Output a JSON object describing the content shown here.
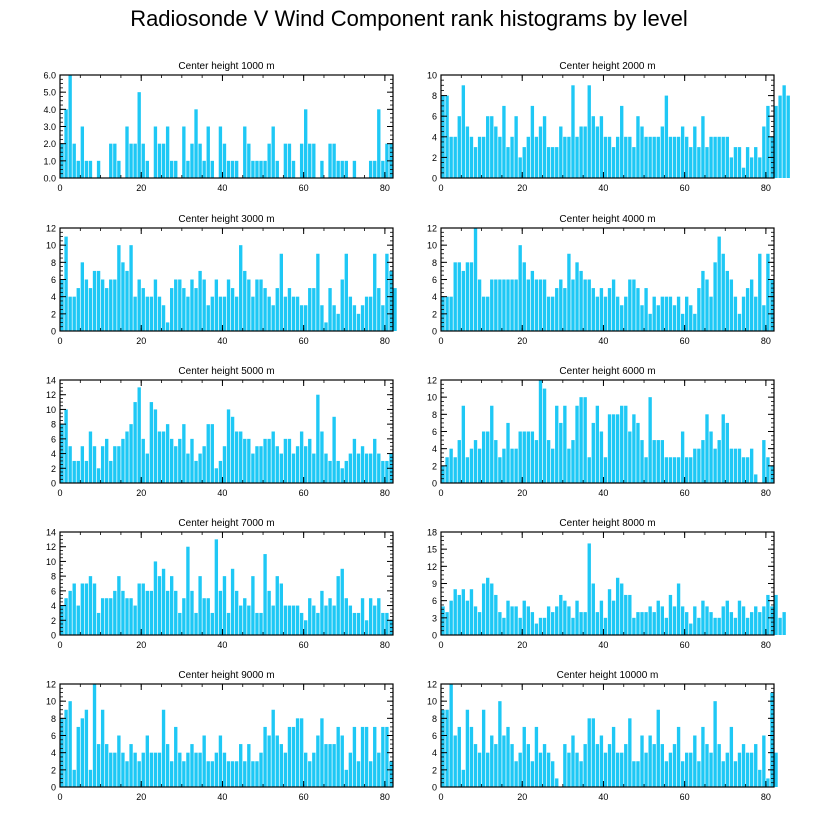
{
  "title": "Radiosonde V Wind Component rank histograms by level",
  "bar_color": "#1ec8f5",
  "chart_data": [
    {
      "type": "bar",
      "title": "Center height 1000 m",
      "xlim": [
        0,
        82
      ],
      "ylim": [
        0,
        6
      ],
      "yticks": [
        0,
        1,
        2,
        3,
        4,
        5,
        6
      ],
      "ytick_labels": [
        "0.0",
        "1.0",
        "2.0",
        "3.0",
        "4.0",
        "5.0",
        "6.0"
      ],
      "xticks": [
        0,
        20,
        40,
        60,
        80
      ],
      "xtick_labels": [
        "0",
        "20",
        "40",
        "60",
        "80"
      ],
      "values": [
        2,
        4,
        6,
        2,
        1,
        3,
        1,
        1,
        0,
        1,
        0,
        0,
        2,
        2,
        1,
        0,
        3,
        2,
        2,
        5,
        2,
        1,
        0,
        3,
        2,
        2,
        3,
        1,
        1,
        0,
        3,
        1,
        2,
        4,
        2,
        1,
        3,
        1,
        0,
        3,
        2,
        1,
        1,
        1,
        0,
        3,
        2,
        1,
        1,
        1,
        1,
        2,
        3,
        1,
        0,
        2,
        2,
        1,
        0,
        2,
        4,
        2,
        2,
        0,
        1,
        0,
        2,
        2,
        1,
        1,
        1,
        0,
        1,
        0,
        0,
        0,
        1,
        1,
        4,
        1,
        2,
        2
      ]
    },
    {
      "type": "bar",
      "title": "Center height 2000 m",
      "xlim": [
        0,
        82
      ],
      "ylim": [
        0,
        10
      ],
      "yticks": [
        0,
        2,
        4,
        6,
        8,
        10
      ],
      "ytick_labels": [
        "0",
        "2",
        "4",
        "6",
        "8",
        "10"
      ],
      "xticks": [
        0,
        20,
        40,
        60,
        80
      ],
      "xtick_labels": [
        "0",
        "20",
        "40",
        "60",
        "80"
      ],
      "values": [
        8,
        8,
        4,
        4,
        6,
        9,
        5,
        4,
        3,
        4,
        4,
        6,
        6,
        5,
        4,
        7,
        3,
        4,
        6,
        2,
        3,
        4,
        7,
        4,
        5,
        6,
        3,
        3,
        3,
        5,
        4,
        4,
        9,
        4,
        5,
        5,
        9,
        6,
        5,
        6,
        4,
        4,
        3,
        4,
        7,
        4,
        4,
        3,
        6,
        5,
        4,
        4,
        4,
        4,
        5,
        8,
        4,
        4,
        4,
        5,
        4,
        3,
        5,
        3,
        6,
        3,
        4,
        4,
        4,
        4,
        4,
        2,
        3,
        3,
        1,
        3,
        2,
        3,
        2,
        5,
        7,
        4,
        7,
        8,
        9,
        8
      ]
    },
    {
      "type": "bar",
      "title": "Center height 3000 m",
      "xlim": [
        0,
        82
      ],
      "ylim": [
        0,
        12
      ],
      "yticks": [
        0,
        2,
        4,
        6,
        8,
        10,
        12
      ],
      "ytick_labels": [
        "0",
        "2",
        "4",
        "6",
        "8",
        "10",
        "12"
      ],
      "xticks": [
        0,
        20,
        40,
        60,
        80
      ],
      "xtick_labels": [
        "0",
        "20",
        "40",
        "60",
        "80"
      ],
      "values": [
        6,
        11,
        4,
        4,
        5,
        8,
        6,
        5,
        7,
        7,
        6,
        5,
        6,
        6,
        10,
        8,
        7,
        10,
        4,
        6,
        5,
        4,
        4,
        6,
        4,
        3,
        1,
        5,
        6,
        6,
        5,
        4,
        6,
        5,
        7,
        6,
        3,
        4,
        6,
        4,
        4,
        6,
        5,
        4,
        10,
        7,
        6,
        4,
        6,
        6,
        5,
        4,
        3,
        5,
        9,
        4,
        5,
        4,
        4,
        3,
        3,
        5,
        5,
        9,
        3,
        1,
        5,
        3,
        2,
        6,
        9,
        4,
        3,
        2,
        3,
        4,
        4,
        9,
        5,
        3,
        9,
        7,
        5
      ]
    },
    {
      "type": "bar",
      "title": "Center height 4000 m",
      "xlim": [
        0,
        82
      ],
      "ylim": [
        0,
        12
      ],
      "yticks": [
        0,
        2,
        4,
        6,
        8,
        10,
        12
      ],
      "ytick_labels": [
        "0",
        "2",
        "4",
        "6",
        "8",
        "10",
        "12"
      ],
      "xticks": [
        0,
        20,
        40,
        60,
        80
      ],
      "xtick_labels": [
        "0",
        "20",
        "40",
        "60",
        "80"
      ],
      "values": [
        4,
        4,
        4,
        8,
        8,
        7,
        8,
        8,
        12,
        6,
        4,
        4,
        6,
        6,
        6,
        6,
        6,
        6,
        6,
        10,
        8,
        6,
        7,
        6,
        6,
        6,
        4,
        4,
        5,
        6,
        5,
        9,
        6,
        8,
        7,
        6,
        6,
        5,
        4,
        5,
        4,
        5,
        6,
        4,
        3,
        4,
        6,
        6,
        5,
        3,
        5,
        2,
        4,
        3,
        4,
        4,
        4,
        3,
        4,
        2,
        4,
        3,
        2,
        5,
        7,
        6,
        4,
        8,
        11,
        9,
        7,
        6,
        4,
        2,
        4,
        5,
        6,
        4,
        9,
        3,
        9,
        6
      ]
    },
    {
      "type": "bar",
      "title": "Center height 5000 m",
      "xlim": [
        0,
        82
      ],
      "ylim": [
        0,
        14
      ],
      "yticks": [
        0,
        2,
        4,
        6,
        8,
        10,
        12,
        14
      ],
      "ytick_labels": [
        "0",
        "2",
        "4",
        "6",
        "8",
        "10",
        "12",
        "14"
      ],
      "xticks": [
        0,
        20,
        40,
        60,
        80
      ],
      "xtick_labels": [
        "0",
        "20",
        "40",
        "60",
        "80"
      ],
      "values": [
        8,
        10,
        5,
        3,
        3,
        5,
        3,
        7,
        5,
        2,
        5,
        6,
        3,
        5,
        5,
        6,
        7,
        8,
        11,
        13,
        6,
        4,
        11,
        10,
        7,
        7,
        8,
        6,
        5,
        6,
        8,
        4,
        6,
        3,
        4,
        5,
        8,
        8,
        2,
        3,
        5,
        10,
        9,
        7,
        7,
        6,
        6,
        4,
        5,
        5,
        6,
        6,
        7,
        5,
        4,
        6,
        6,
        4,
        5,
        7,
        5,
        6,
        4,
        12,
        7,
        4,
        3,
        9,
        3,
        2,
        3,
        4,
        6,
        4,
        5,
        4,
        4,
        6,
        4,
        3,
        3,
        4
      ]
    },
    {
      "type": "bar",
      "title": "Center height 6000 m",
      "xlim": [
        0,
        82
      ],
      "ylim": [
        0,
        12
      ],
      "yticks": [
        0,
        2,
        4,
        6,
        8,
        10,
        12
      ],
      "ytick_labels": [
        "0",
        "2",
        "4",
        "6",
        "8",
        "10",
        "12"
      ],
      "xticks": [
        0,
        20,
        40,
        60,
        80
      ],
      "xtick_labels": [
        "0",
        "20",
        "40",
        "60",
        "80"
      ],
      "values": [
        2,
        3,
        4,
        3,
        5,
        9,
        3,
        4,
        5,
        4,
        6,
        6,
        9,
        5,
        3,
        4,
        7,
        4,
        4,
        6,
        6,
        6,
        6,
        5,
        12,
        11,
        5,
        4,
        9,
        7,
        9,
        4,
        5,
        9,
        10,
        10,
        3,
        7,
        9,
        6,
        3,
        8,
        8,
        8,
        9,
        9,
        6,
        8,
        7,
        5,
        3,
        10,
        5,
        5,
        5,
        3,
        3,
        3,
        3,
        6,
        3,
        3,
        4,
        4,
        5,
        8,
        6,
        4,
        5,
        8,
        7,
        4,
        4,
        4,
        3,
        3,
        4,
        1,
        0,
        5,
        3,
        2
      ]
    },
    {
      "type": "bar",
      "title": "Center height 7000 m",
      "xlim": [
        0,
        82
      ],
      "ylim": [
        0,
        14
      ],
      "yticks": [
        0,
        2,
        4,
        6,
        8,
        10,
        12,
        14
      ],
      "ytick_labels": [
        "0",
        "2",
        "4",
        "6",
        "8",
        "10",
        "12",
        "14"
      ],
      "xticks": [
        0,
        20,
        40,
        60,
        80
      ],
      "xtick_labels": [
        "0",
        "20",
        "40",
        "60",
        "80"
      ],
      "values": [
        4,
        5,
        6,
        7,
        4,
        7,
        7,
        8,
        7,
        3,
        5,
        5,
        5,
        6,
        8,
        6,
        5,
        5,
        4,
        7,
        7,
        6,
        6,
        10,
        8,
        9,
        6,
        8,
        6,
        3,
        5,
        12,
        6,
        3,
        8,
        5,
        5,
        3,
        13,
        6,
        8,
        3,
        9,
        6,
        4,
        5,
        4,
        8,
        3,
        3,
        11,
        6,
        4,
        8,
        7,
        4,
        4,
        4,
        4,
        3,
        2,
        5,
        4,
        3,
        6,
        4,
        5,
        4,
        8,
        9,
        5,
        4,
        3,
        3,
        5,
        2,
        5,
        4,
        5,
        3,
        3,
        2
      ]
    },
    {
      "type": "bar",
      "title": "Center height 8000 m",
      "xlim": [
        0,
        82
      ],
      "ylim": [
        0,
        18
      ],
      "yticks": [
        0,
        3,
        6,
        9,
        12,
        15,
        18
      ],
      "ytick_labels": [
        "0",
        "3",
        "6",
        "9",
        "12",
        "15",
        "18"
      ],
      "xticks": [
        0,
        20,
        40,
        60,
        80
      ],
      "xtick_labels": [
        "0",
        "20",
        "40",
        "60",
        "80"
      ],
      "values": [
        5,
        4,
        6,
        8,
        7,
        8,
        6,
        8,
        5,
        4,
        9,
        10,
        9,
        7,
        4,
        3,
        6,
        5,
        5,
        3,
        6,
        5,
        4,
        2,
        3,
        3,
        5,
        4,
        5,
        7,
        6,
        5,
        3,
        6,
        4,
        4,
        16,
        9,
        4,
        6,
        3,
        8,
        6,
        10,
        9,
        7,
        7,
        3,
        4,
        4,
        4,
        5,
        4,
        6,
        5,
        3,
        7,
        5,
        9,
        5,
        4,
        2,
        5,
        3,
        6,
        5,
        4,
        3,
        3,
        5,
        6,
        4,
        3,
        6,
        5,
        3,
        4,
        5,
        4,
        5,
        7,
        5,
        7,
        3,
        4
      ]
    },
    {
      "type": "bar",
      "title": "Center height 9000 m",
      "xlim": [
        0,
        82
      ],
      "ylim": [
        0,
        12
      ],
      "yticks": [
        0,
        2,
        4,
        6,
        8,
        10,
        12
      ],
      "ytick_labels": [
        "0",
        "2",
        "4",
        "6",
        "8",
        "10",
        "12"
      ],
      "xticks": [
        0,
        20,
        40,
        60,
        80
      ],
      "xtick_labels": [
        "0",
        "20",
        "40",
        "60",
        "80"
      ],
      "values": [
        8,
        9,
        10,
        2,
        7,
        8,
        9,
        2,
        12,
        5,
        9,
        5,
        4,
        4,
        6,
        4,
        3,
        5,
        4,
        3,
        4,
        6,
        4,
        4,
        4,
        9,
        5,
        3,
        7,
        4,
        3,
        4,
        5,
        4,
        4,
        6,
        3,
        3,
        4,
        6,
        4,
        3,
        3,
        3,
        5,
        3,
        5,
        3,
        3,
        4,
        7,
        6,
        9,
        6,
        5,
        4,
        7,
        7,
        8,
        8,
        4,
        3,
        4,
        6,
        8,
        5,
        5,
        5,
        7,
        6,
        2,
        4,
        7,
        3,
        7,
        7,
        3,
        7,
        4,
        7,
        7,
        3
      ]
    },
    {
      "type": "bar",
      "title": "Center height 10000 m",
      "xlim": [
        0,
        82
      ],
      "ylim": [
        0,
        12
      ],
      "yticks": [
        0,
        2,
        4,
        6,
        8,
        10,
        12
      ],
      "ytick_labels": [
        "0",
        "2",
        "4",
        "6",
        "8",
        "10",
        "12"
      ],
      "xticks": [
        0,
        20,
        40,
        60,
        80
      ],
      "xtick_labels": [
        "0",
        "20",
        "40",
        "60",
        "80"
      ],
      "values": [
        9,
        9,
        12,
        6,
        7,
        2,
        9,
        7,
        5,
        4,
        9,
        4,
        6,
        5,
        10,
        6,
        7,
        5,
        3,
        4,
        7,
        5,
        3,
        7,
        4,
        5,
        4,
        3,
        1,
        0,
        5,
        4,
        6,
        4,
        3,
        5,
        8,
        8,
        5,
        6,
        4,
        5,
        7,
        4,
        4,
        5,
        8,
        3,
        3,
        6,
        4,
        6,
        5,
        9,
        5,
        3,
        4,
        5,
        7,
        3,
        4,
        4,
        6,
        3,
        7,
        5,
        4,
        10,
        5,
        3,
        4,
        7,
        3,
        4,
        5,
        4,
        4,
        5,
        2,
        6,
        1,
        11,
        4
      ]
    }
  ]
}
